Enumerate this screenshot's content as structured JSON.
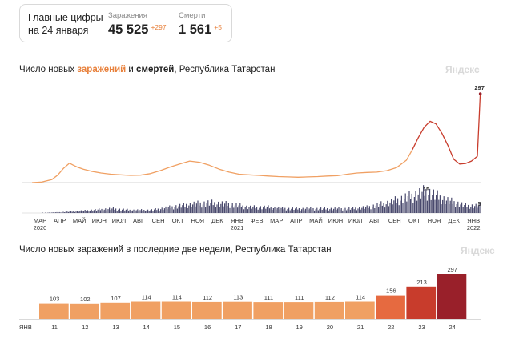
{
  "summary": {
    "heading_line1": "Главные цифры",
    "heading_line2": "на 24 января",
    "infections": {
      "label": "Заражения",
      "value": "45 525",
      "delta": "+297"
    },
    "deaths": {
      "label": "Смерти",
      "value": "1 561",
      "delta": "+5"
    }
  },
  "watermark": "Яндекс",
  "colors": {
    "infections": "#e8813c",
    "deaths": "#4a4a6e",
    "bar_normal": "#f0a063",
    "bar_high1": "#e66a40",
    "bar_high2": "#c83c2c",
    "bar_high3": "#99202a",
    "weekend_label": "#e05a2a"
  },
  "chart_data": [
    {
      "type": "line",
      "title_parts": [
        "Число новых ",
        "заражений",
        " и ",
        "смертей",
        ", Республика Татарстан"
      ],
      "x_ticks": [
        {
          "label": "МАР",
          "sub": "2020"
        },
        {
          "label": "АПР"
        },
        {
          "label": "МАЙ"
        },
        {
          "label": "ИЮН"
        },
        {
          "label": "ИЮЛ"
        },
        {
          "label": "АВГ"
        },
        {
          "label": "СЕН"
        },
        {
          "label": "ОКТ"
        },
        {
          "label": "НОЯ"
        },
        {
          "label": "ДЕК"
        },
        {
          "label": "ЯНВ",
          "sub": "2021"
        },
        {
          "label": "ФЕВ"
        },
        {
          "label": "МАР"
        },
        {
          "label": "АПР"
        },
        {
          "label": "МАЙ"
        },
        {
          "label": "ИЮН"
        },
        {
          "label": "ИЮЛ"
        },
        {
          "label": "АВГ"
        },
        {
          "label": "СЕН"
        },
        {
          "label": "ОКТ"
        },
        {
          "label": "НОЯ"
        },
        {
          "label": "ДЕК"
        },
        {
          "label": "ЯНВ",
          "sub": "2022"
        }
      ],
      "series": [
        {
          "name": "заражения",
          "x": [
            0,
            0.5,
            1,
            1.3,
            1.6,
            1.9,
            2.1,
            2.3,
            2.6,
            3.0,
            3.5,
            4.0,
            4.5,
            5.0,
            5.5,
            6.0,
            6.5,
            7.0,
            7.5,
            8.0,
            8.5,
            9.0,
            9.5,
            10.0,
            10.5,
            11.0,
            11.5,
            12.0,
            12.5,
            13.0,
            13.5,
            14.0,
            14.5,
            15.0,
            15.5,
            16.0,
            16.5,
            17.0,
            17.5,
            18.0,
            18.5,
            19.0,
            19.3,
            19.6,
            19.9,
            20.2,
            20.5,
            20.8,
            21.1,
            21.4,
            21.7,
            22.0,
            22.3,
            22.6,
            22.75
          ],
          "y": [
            0,
            2,
            10,
            25,
            48,
            65,
            58,
            52,
            45,
            38,
            32,
            28,
            26,
            24,
            25,
            30,
            40,
            52,
            62,
            72,
            68,
            58,
            45,
            35,
            28,
            26,
            24,
            22,
            20,
            19,
            18,
            19,
            20,
            22,
            23,
            28,
            32,
            34,
            35,
            40,
            50,
            75,
            110,
            150,
            185,
            205,
            196,
            165,
            125,
            78,
            62,
            64,
            72,
            88,
            297
          ],
          "peak_label": "297"
        },
        {
          "name": "смерти",
          "x": [
            0,
            1,
            2,
            3,
            4,
            5,
            6,
            7,
            8,
            9,
            10,
            11,
            12,
            13,
            14,
            15,
            16,
            17,
            18,
            19,
            19.5,
            20,
            20.5,
            21,
            21.5,
            22,
            22.75
          ],
          "y": [
            0,
            0.3,
            1,
            2,
            3,
            2,
            2,
            4,
            6,
            7,
            6,
            4,
            4,
            3,
            3,
            3,
            3,
            4,
            7,
            11,
            13,
            15,
            12,
            9,
            7,
            5,
            5
          ],
          "peak_labels": [
            "15",
            "5"
          ]
        }
      ]
    },
    {
      "type": "bar",
      "title": "Число новых заражений в последние две недели, Республика Татарстан",
      "month_label": "ЯНВ",
      "categories": [
        "11",
        "12",
        "13",
        "14",
        "15",
        "16",
        "17",
        "18",
        "19",
        "20",
        "21",
        "22",
        "23",
        "24"
      ],
      "weekend_categories": [
        "15",
        "16",
        "22",
        "23"
      ],
      "values": [
        103,
        102,
        107,
        114,
        114,
        112,
        113,
        111,
        111,
        112,
        114,
        156,
        213,
        297
      ],
      "value_labels": [
        "103",
        "102",
        "107",
        "114",
        "114",
        "112",
        "113",
        "111",
        "111",
        "112",
        "114",
        "156",
        "213",
        "297"
      ],
      "ylim": [
        0,
        297
      ]
    }
  ]
}
